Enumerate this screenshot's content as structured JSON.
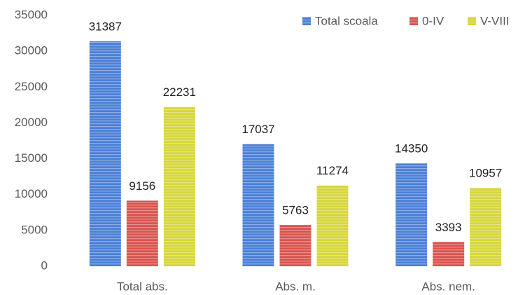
{
  "chart_data": {
    "type": "bar",
    "categories": [
      "Total abs.",
      "Abs. m.",
      "Abs. nem."
    ],
    "series": [
      {
        "name": "Total scoala",
        "color": "#4a7fd6",
        "values": [
          31387,
          17037,
          14350
        ]
      },
      {
        "name": "0-IV",
        "color": "#d9534f",
        "values": [
          9156,
          5763,
          3393
        ]
      },
      {
        "name": "V-VIII",
        "color": "#d6d63a",
        "values": [
          22231,
          11274,
          10957
        ]
      }
    ],
    "ylim": [
      0,
      35000
    ],
    "yticks": [
      0,
      5000,
      10000,
      15000,
      20000,
      25000,
      30000,
      35000
    ],
    "grid": false,
    "legend": "top-right"
  }
}
